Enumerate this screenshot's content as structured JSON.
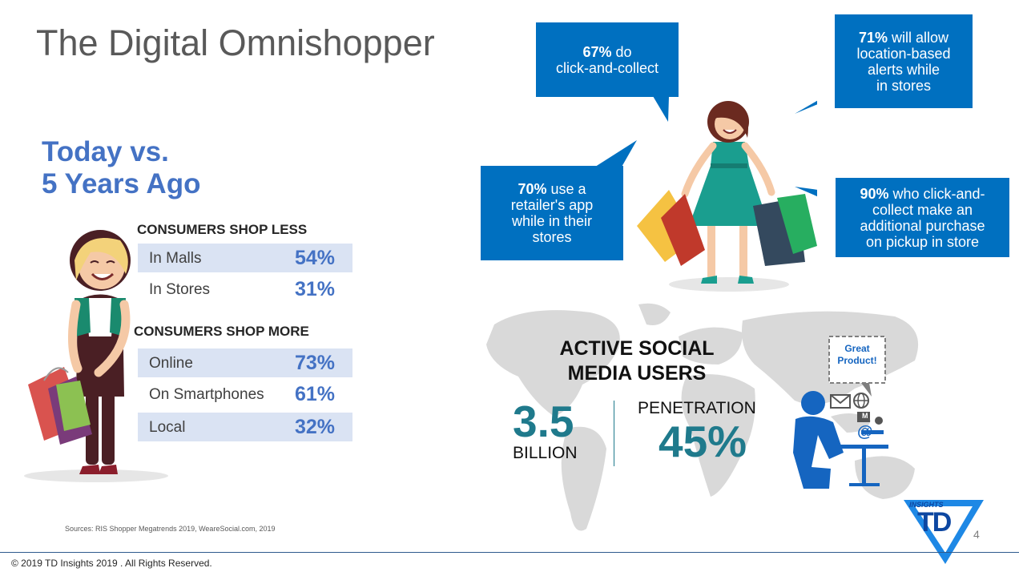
{
  "title": "The Digital Omnishopper",
  "subtitle_line1": "Today vs.",
  "subtitle_line2": "5 Years Ago",
  "shop_less": {
    "heading": "CONSUMERS SHOP LESS",
    "rows": [
      {
        "label": "In Malls",
        "value": "54%"
      },
      {
        "label": "In Stores",
        "value": "31%"
      }
    ]
  },
  "shop_more": {
    "heading": "CONSUMERS SHOP MORE",
    "rows": [
      {
        "label": "Online",
        "value": "73%"
      },
      {
        "label": "On Smartphones",
        "value": "61%"
      },
      {
        "label": "Local",
        "value": "32%"
      }
    ]
  },
  "bubbles": {
    "b1": {
      "strong": "67%",
      "rest_line1": " do",
      "rest_line2": "click-and-collect"
    },
    "b2": {
      "strong": "71%",
      "rest_line1": " will allow",
      "rest_line2": "location-based",
      "rest_line3": "alerts while",
      "rest_line4": "in stores"
    },
    "b3": {
      "strong": "70%",
      "rest_line1": " use a",
      "rest_line2": "retailer's app",
      "rest_line3": "while in their",
      "rest_line4": "stores"
    },
    "b4": {
      "strong": "90%",
      "rest_line1": " who click-and-",
      "rest_line2": "collect make an",
      "rest_line3": "additional purchase",
      "rest_line4": "on pickup in store"
    }
  },
  "social": {
    "heading_line1": "ACTIVE SOCIAL",
    "heading_line2": "MEDIA USERS",
    "users_value": "3.5",
    "users_unit": "BILLION",
    "penetration_label": "PENETRATION",
    "penetration_value": "45%",
    "note_line1": "Great",
    "note_line2": "Product!",
    "mail_badge": "M",
    "at_symbol": "@"
  },
  "logo": {
    "insights": "INSIGHTS",
    "td": "TD"
  },
  "sources": "Sources: RIS Shopper Megatrends 2019, WeareSocial.com, 2019",
  "copyright": "© 2019 TD Insights 2019 . All Rights Reserved.",
  "page_number": "4",
  "colors": {
    "accent_blue": "#4472C4",
    "bubble_blue": "#0070C0",
    "teal": "#1F7A8C",
    "shade": "#DAE3F3"
  }
}
